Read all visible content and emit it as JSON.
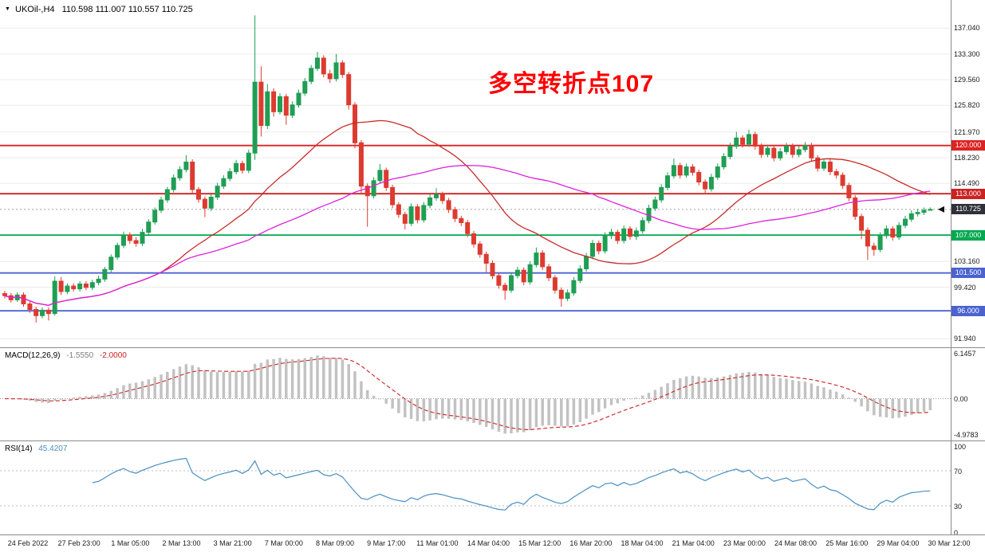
{
  "header": {
    "symbol_period": "UKOil-,H4",
    "ohlc_line": "110.598 111.007 110.557 110.725"
  },
  "annotation": {
    "text": "多空转折点107",
    "color": "#ff0000"
  },
  "chart_data": {
    "type": "candlestick",
    "symbol": "UKOil-",
    "timeframe": "H4",
    "ohlc_display": {
      "open": "110.598",
      "high": "111.007",
      "low": "110.557",
      "close": "110.725"
    },
    "current_price": 110.725,
    "price_range": {
      "top": 140.2,
      "bottom": 91.4
    },
    "price_axis": {
      "labels": [
        {
          "text": "137.040",
          "price": 137.04
        },
        {
          "text": "133.300",
          "price": 133.3
        },
        {
          "text": "129.560",
          "price": 129.56
        },
        {
          "text": "125.820",
          "price": 125.82
        },
        {
          "text": "121.970",
          "price": 121.97
        },
        {
          "text": "118.230",
          "price": 118.23
        },
        {
          "text": "114.490",
          "price": 114.49
        },
        {
          "text": "103.160",
          "price": 103.16
        },
        {
          "text": "99.420",
          "price": 99.42
        },
        {
          "text": "91.940",
          "price": 91.94
        }
      ],
      "badges": [
        {
          "text": "120.000",
          "price": 120.0,
          "color": "#dd2222"
        },
        {
          "text": "113.000",
          "price": 113.0,
          "color": "#cc2222"
        },
        {
          "text": "110.725",
          "price": 110.725,
          "color": "#30303a"
        },
        {
          "text": "107.000",
          "price": 107.0,
          "color": "#00a84f"
        },
        {
          "text": "101.500",
          "price": 101.5,
          "color": "#4a63cf"
        },
        {
          "text": "96.000",
          "price": 96.0,
          "color": "#4a63cf"
        }
      ]
    },
    "hlines": [
      {
        "label": "120.000",
        "price": 120.0,
        "color": "#dd2222"
      },
      {
        "label": "113.000",
        "price": 113.0,
        "color": "#cc2222"
      },
      {
        "label": "107.000",
        "price": 107.0,
        "color": "#00a84f"
      },
      {
        "label": "101.500",
        "price": 101.5,
        "color": "#4a63cf"
      },
      {
        "label": "96.000",
        "price": 96.0,
        "color": "#4a63cf"
      }
    ],
    "overlays": [
      {
        "type": "sma",
        "period": 26,
        "color": "#c92a2a"
      },
      {
        "type": "sma",
        "period": 55,
        "color": "#dd22dd"
      }
    ],
    "colors": {
      "up": "#1f9e54",
      "down": "#dd3b30",
      "grid": "#ececec",
      "macd_hist": "#c2c2c2",
      "macd_signal": "#d03030",
      "rsi_line": "#4a8fc0",
      "current_line": "#a0a0a0"
    },
    "time_axis": [
      "24 Feb 2022",
      "27 Feb 23:00",
      "1 Mar 05:00",
      "2 Mar 13:00",
      "3 Mar 21:00",
      "7 Mar 00:00",
      "8 Mar 09:00",
      "9 Mar 17:00",
      "11 Mar 01:00",
      "14 Mar 04:00",
      "15 Mar 12:00",
      "16 Mar 20:00",
      "18 Mar 04:00",
      "21 Mar 04:00",
      "23 Mar 00:00",
      "24 Mar 08:00",
      "25 Mar 16:00",
      "29 Mar 04:00",
      "30 Mar 12:00"
    ],
    "macd": {
      "label": "MACD(12,26,9)",
      "fast": 12,
      "slow": 26,
      "signal": 9,
      "value_main": "-1.5550",
      "value_signal": "-2.0000",
      "axis_labels": {
        "top": "6.1457",
        "zero": "0.00",
        "bottom": "-4.9783"
      }
    },
    "rsi": {
      "label": "RSI(14)",
      "period": 14,
      "value": "45.4207",
      "axis": [
        {
          "text": "100",
          "value": 100
        },
        {
          "text": "70",
          "value": 70
        },
        {
          "text": "30",
          "value": 30
        },
        {
          "text": "0",
          "value": 0
        }
      ]
    },
    "candles": [
      [
        98.5,
        98.9,
        97.8,
        98.2
      ],
      [
        98.2,
        98.6,
        97.2,
        97.6
      ],
      [
        97.6,
        98.7,
        97.3,
        98.3
      ],
      [
        98.3,
        98.7,
        96.6,
        97.0
      ],
      [
        97.0,
        97.4,
        95.7,
        96.2
      ],
      [
        96.2,
        96.6,
        94.3,
        95.3
      ],
      [
        95.3,
        96.5,
        94.9,
        96.1
      ],
      [
        96.1,
        96.5,
        94.6,
        95.6
      ],
      [
        95.6,
        101.0,
        95.3,
        100.3
      ],
      [
        100.3,
        100.9,
        98.3,
        98.8
      ],
      [
        98.8,
        100.0,
        98.4,
        99.6
      ],
      [
        99.6,
        100.0,
        98.8,
        99.2
      ],
      [
        99.2,
        100.3,
        98.8,
        99.9
      ],
      [
        99.9,
        100.3,
        99.0,
        99.4
      ],
      [
        99.4,
        100.5,
        99.0,
        100.1
      ],
      [
        100.1,
        101.1,
        99.7,
        100.6
      ],
      [
        100.6,
        102.4,
        100.2,
        102.0
      ],
      [
        102.0,
        104.2,
        101.6,
        103.8
      ],
      [
        103.8,
        105.9,
        103.4,
        105.5
      ],
      [
        105.5,
        107.5,
        105.1,
        107.0
      ],
      [
        107.0,
        107.4,
        105.7,
        106.2
      ],
      [
        106.2,
        106.7,
        105.3,
        105.8
      ],
      [
        105.8,
        107.9,
        105.4,
        107.4
      ],
      [
        107.4,
        109.3,
        107.0,
        108.9
      ],
      [
        108.9,
        111.0,
        108.5,
        110.6
      ],
      [
        110.6,
        112.6,
        110.2,
        112.1
      ],
      [
        112.1,
        114.0,
        111.7,
        113.6
      ],
      [
        113.6,
        115.8,
        113.2,
        115.3
      ],
      [
        115.3,
        117.0,
        114.9,
        116.5
      ],
      [
        116.5,
        118.6,
        116.1,
        117.6
      ],
      [
        117.6,
        118.0,
        113.1,
        113.6
      ],
      [
        113.6,
        114.0,
        111.7,
        112.2
      ],
      [
        112.2,
        112.6,
        109.6,
        110.9
      ],
      [
        110.9,
        112.9,
        110.5,
        112.5
      ],
      [
        112.5,
        114.6,
        112.1,
        114.1
      ],
      [
        114.1,
        115.7,
        113.7,
        115.2
      ],
      [
        115.2,
        116.7,
        114.8,
        116.2
      ],
      [
        116.2,
        117.9,
        115.8,
        117.4
      ],
      [
        117.4,
        117.8,
        115.9,
        116.4
      ],
      [
        116.4,
        119.4,
        116.0,
        118.9
      ],
      [
        118.9,
        138.9,
        117.9,
        129.2
      ],
      [
        129.2,
        131.5,
        121.3,
        122.9
      ],
      [
        122.9,
        128.9,
        122.4,
        127.8
      ],
      [
        127.8,
        128.3,
        124.2,
        124.9
      ],
      [
        124.9,
        127.6,
        124.5,
        127.1
      ],
      [
        127.1,
        127.5,
        123.0,
        124.4
      ],
      [
        124.4,
        126.4,
        124.0,
        125.9
      ],
      [
        125.9,
        128.1,
        125.5,
        127.6
      ],
      [
        127.6,
        129.8,
        127.2,
        129.3
      ],
      [
        129.3,
        131.7,
        128.9,
        131.2
      ],
      [
        131.2,
        133.6,
        130.8,
        132.7
      ],
      [
        132.7,
        133.1,
        129.9,
        130.4
      ],
      [
        130.4,
        131.0,
        129.1,
        129.7
      ],
      [
        129.7,
        133.3,
        129.3,
        132.0
      ],
      [
        132.0,
        132.4,
        129.8,
        130.3
      ],
      [
        130.3,
        130.7,
        125.2,
        125.9
      ],
      [
        125.9,
        126.3,
        119.6,
        120.4
      ],
      [
        120.4,
        120.8,
        112.9,
        114.1
      ],
      [
        114.1,
        114.5,
        108.2,
        112.7
      ],
      [
        112.7,
        115.4,
        112.3,
        114.9
      ],
      [
        114.9,
        117.3,
        114.5,
        116.4
      ],
      [
        116.4,
        116.8,
        113.4,
        113.9
      ],
      [
        113.9,
        114.3,
        110.9,
        111.4
      ],
      [
        111.4,
        111.8,
        109.5,
        110.0
      ],
      [
        110.0,
        110.4,
        107.8,
        108.7
      ],
      [
        108.7,
        111.6,
        108.3,
        111.1
      ],
      [
        111.1,
        111.5,
        108.7,
        109.2
      ],
      [
        109.2,
        111.8,
        108.8,
        111.3
      ],
      [
        111.3,
        112.9,
        110.9,
        112.4
      ],
      [
        112.4,
        113.8,
        112.0,
        112.9
      ],
      [
        112.9,
        113.3,
        111.5,
        112.0
      ],
      [
        112.0,
        112.4,
        110.2,
        110.7
      ],
      [
        110.7,
        111.1,
        108.9,
        109.4
      ],
      [
        109.4,
        109.8,
        108.3,
        108.8
      ],
      [
        108.8,
        109.2,
        106.7,
        107.2
      ],
      [
        107.2,
        107.6,
        105.2,
        105.7
      ],
      [
        105.7,
        106.1,
        103.7,
        104.2
      ],
      [
        104.2,
        104.6,
        101.6,
        102.9
      ],
      [
        102.9,
        103.3,
        100.6,
        101.1
      ],
      [
        101.1,
        101.5,
        99.2,
        99.7
      ],
      [
        99.7,
        100.1,
        97.6,
        99.0
      ],
      [
        99.0,
        101.6,
        98.6,
        101.1
      ],
      [
        101.1,
        102.4,
        100.7,
        101.9
      ],
      [
        101.9,
        102.3,
        99.7,
        100.2
      ],
      [
        100.2,
        103.2,
        99.8,
        102.7
      ],
      [
        102.7,
        105.2,
        102.3,
        104.4
      ],
      [
        104.4,
        104.8,
        101.9,
        102.4
      ],
      [
        102.4,
        102.8,
        100.3,
        100.8
      ],
      [
        100.8,
        101.2,
        98.5,
        99.0
      ],
      [
        99.0,
        99.4,
        96.6,
        97.8
      ],
      [
        97.8,
        99.1,
        97.4,
        98.6
      ],
      [
        98.6,
        100.9,
        98.2,
        100.4
      ],
      [
        100.4,
        102.6,
        100.0,
        102.1
      ],
      [
        102.1,
        104.4,
        101.7,
        103.9
      ],
      [
        103.9,
        106.3,
        103.5,
        105.8
      ],
      [
        105.8,
        106.2,
        104.2,
        104.7
      ],
      [
        104.7,
        107.4,
        104.3,
        106.9
      ],
      [
        106.9,
        107.9,
        106.4,
        107.4
      ],
      [
        107.4,
        107.8,
        105.7,
        106.2
      ],
      [
        106.2,
        108.4,
        105.8,
        107.9
      ],
      [
        107.9,
        108.3,
        106.3,
        106.8
      ],
      [
        106.8,
        108.1,
        106.3,
        107.6
      ],
      [
        107.6,
        109.6,
        107.2,
        109.1
      ],
      [
        109.1,
        111.4,
        108.7,
        110.9
      ],
      [
        110.9,
        112.6,
        110.5,
        112.1
      ],
      [
        112.1,
        114.4,
        111.7,
        113.9
      ],
      [
        113.9,
        116.1,
        113.5,
        115.6
      ],
      [
        115.6,
        118.1,
        115.2,
        117.1
      ],
      [
        117.1,
        117.5,
        115.2,
        115.7
      ],
      [
        115.7,
        117.4,
        115.3,
        116.9
      ],
      [
        116.9,
        117.3,
        115.6,
        116.1
      ],
      [
        116.1,
        116.5,
        114.2,
        114.7
      ],
      [
        114.7,
        115.1,
        112.9,
        113.7
      ],
      [
        113.7,
        115.9,
        113.3,
        115.4
      ],
      [
        115.4,
        117.4,
        115.0,
        116.9
      ],
      [
        116.9,
        118.9,
        116.5,
        118.4
      ],
      [
        118.4,
        120.4,
        118.0,
        119.9
      ],
      [
        119.9,
        122.0,
        119.5,
        121.1
      ],
      [
        121.1,
        121.5,
        119.7,
        120.2
      ],
      [
        120.2,
        122.3,
        119.8,
        121.6
      ],
      [
        121.6,
        122.0,
        119.4,
        119.9
      ],
      [
        119.9,
        120.3,
        118.2,
        118.7
      ],
      [
        118.7,
        120.1,
        118.3,
        119.6
      ],
      [
        119.6,
        120.0,
        117.7,
        118.2
      ],
      [
        118.2,
        119.6,
        117.8,
        119.1
      ],
      [
        119.1,
        120.4,
        118.7,
        119.9
      ],
      [
        119.9,
        120.3,
        118.2,
        118.7
      ],
      [
        118.7,
        119.9,
        118.3,
        119.4
      ],
      [
        119.4,
        120.5,
        119.0,
        120.0
      ],
      [
        120.0,
        120.4,
        117.7,
        118.2
      ],
      [
        118.2,
        118.6,
        116.2,
        116.7
      ],
      [
        116.7,
        118.1,
        116.3,
        117.6
      ],
      [
        117.6,
        118.0,
        115.7,
        116.2
      ],
      [
        116.2,
        116.6,
        115.2,
        115.7
      ],
      [
        115.7,
        116.1,
        113.7,
        114.2
      ],
      [
        114.2,
        114.6,
        111.9,
        112.4
      ],
      [
        112.4,
        112.8,
        109.2,
        109.7
      ],
      [
        109.7,
        110.1,
        106.4,
        107.7
      ],
      [
        107.7,
        108.1,
        103.4,
        105.4
      ],
      [
        105.4,
        105.9,
        104.0,
        104.9
      ],
      [
        104.9,
        107.4,
        104.5,
        106.9
      ],
      [
        106.9,
        108.4,
        106.5,
        107.9
      ],
      [
        107.9,
        108.3,
        106.2,
        106.7
      ],
      [
        106.7,
        108.9,
        106.3,
        108.4
      ],
      [
        108.4,
        109.8,
        108.0,
        109.3
      ],
      [
        109.3,
        110.6,
        108.9,
        110.1
      ],
      [
        110.1,
        110.8,
        109.7,
        110.3
      ],
      [
        110.3,
        111.0,
        109.9,
        110.6
      ],
      [
        110.598,
        111.007,
        110.557,
        110.725
      ]
    ]
  }
}
